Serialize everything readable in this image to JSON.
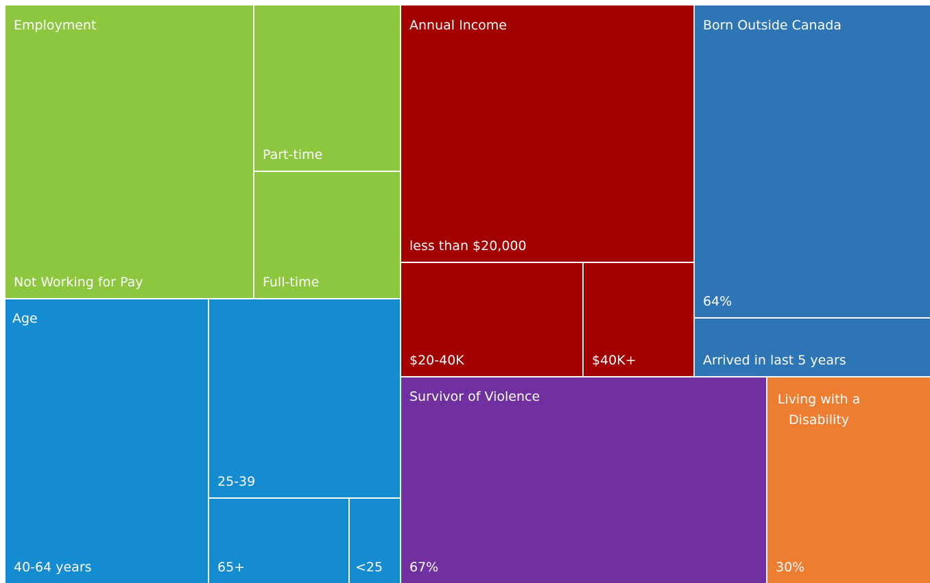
{
  "groups": [
    {
      "title": "Employment",
      "leaves": [
        "Not Working for Pay",
        "Part-time",
        "Full-time"
      ]
    },
    {
      "title": "Age",
      "leaves": [
        "40-64 years",
        "25-39",
        "65+",
        "<25"
      ]
    },
    {
      "title": "Annual Income",
      "leaves": [
        "less than $20,000",
        "$20-40K",
        "$40K+"
      ]
    },
    {
      "title": "Born Outside Canada",
      "leaves": [
        "64%",
        "Arrived in last 5 years"
      ]
    },
    {
      "title": "Survivor of Violence",
      "leaves": [
        "67%"
      ]
    },
    {
      "title": "Living with a Disability",
      "leaves": [
        "30%"
      ]
    }
  ]
}
